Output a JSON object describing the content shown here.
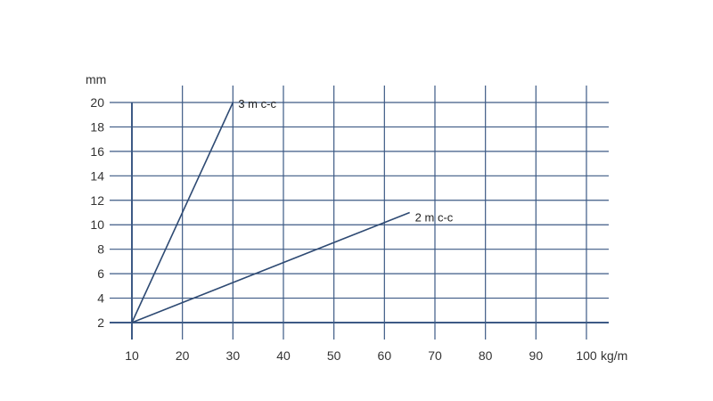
{
  "chart_data": {
    "type": "line",
    "xlabel": "kg/m",
    "ylabel": "mm",
    "xlim": [
      10,
      100
    ],
    "ylim": [
      2,
      20
    ],
    "x_ticks": [
      10,
      20,
      30,
      40,
      50,
      60,
      70,
      80,
      90,
      100
    ],
    "y_ticks": [
      2,
      4,
      6,
      8,
      10,
      12,
      14,
      16,
      18,
      20
    ],
    "grid": true,
    "series": [
      {
        "name": "3 m c-c",
        "x": [
          10,
          30
        ],
        "y": [
          2,
          20
        ]
      },
      {
        "name": "2 m c-c",
        "x": [
          10,
          65
        ],
        "y": [
          2,
          11
        ]
      }
    ],
    "colors": {
      "grid": "#3d5a85",
      "line": "#2e4a73",
      "text": "#333333"
    }
  }
}
